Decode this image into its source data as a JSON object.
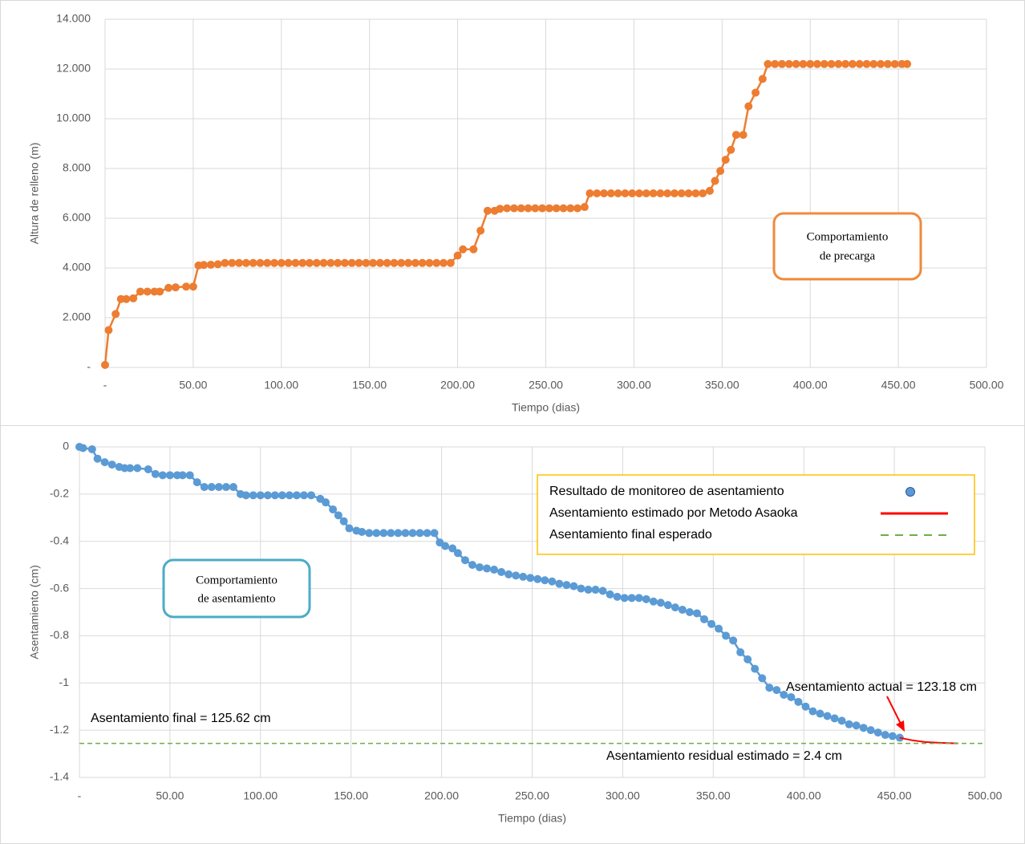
{
  "chart_data": [
    {
      "type": "line",
      "xlabel": "Tiempo (dias)",
      "ylabel": "Altura de relleno (m)",
      "xlim": [
        0,
        500
      ],
      "ylim": [
        0,
        14
      ],
      "xticks": [
        {
          "value": 0,
          "label": "-"
        },
        {
          "value": 50,
          "label": "50.00"
        },
        {
          "value": 100,
          "label": "100.00"
        },
        {
          "value": 150,
          "label": "150.00"
        },
        {
          "value": 200,
          "label": "200.00"
        },
        {
          "value": 250,
          "label": "250.00"
        },
        {
          "value": 300,
          "label": "300.00"
        },
        {
          "value": 350,
          "label": "350.00"
        },
        {
          "value": 400,
          "label": "400.00"
        },
        {
          "value": 450,
          "label": "450.00"
        },
        {
          "value": 500,
          "label": "500.00"
        }
      ],
      "yticks": [
        {
          "value": 0,
          "label": "-"
        },
        {
          "value": 2,
          "label": "2.000"
        },
        {
          "value": 4,
          "label": "4.000"
        },
        {
          "value": 6,
          "label": "6.000"
        },
        {
          "value": 8,
          "label": "8.000"
        },
        {
          "value": 10,
          "label": "10.000"
        },
        {
          "value": 12,
          "label": "12.000"
        },
        {
          "value": 14,
          "label": "14.000"
        }
      ],
      "grid": true,
      "note_box": [
        "Comportamiento",
        "de precarga"
      ],
      "note_color": "#f08a3c",
      "series": [
        {
          "color": "#ed7d31",
          "marker": true,
          "x": [
            0,
            2,
            6,
            9,
            12,
            16,
            20,
            24,
            28,
            31,
            36,
            40,
            46,
            50,
            53,
            56,
            60,
            64,
            68,
            72,
            76,
            80,
            84,
            88,
            92,
            96,
            100,
            104,
            108,
            112,
            116,
            120,
            124,
            128,
            132,
            136,
            140,
            144,
            148,
            152,
            156,
            160,
            164,
            168,
            172,
            176,
            180,
            184,
            188,
            192,
            196,
            200,
            203,
            209,
            213,
            217,
            221,
            224,
            228,
            232,
            236,
            240,
            244,
            248,
            252,
            256,
            260,
            264,
            268,
            272,
            275,
            279,
            283,
            287,
            291,
            295,
            299,
            303,
            307,
            311,
            315,
            319,
            323,
            327,
            331,
            335,
            339,
            343,
            346,
            349,
            352,
            355,
            358,
            362,
            365,
            369,
            373,
            376,
            380,
            384,
            388,
            392,
            396,
            400,
            404,
            408,
            412,
            416,
            420,
            424,
            428,
            432,
            436,
            440,
            444,
            448,
            452,
            455
          ],
          "values": [
            0.1,
            1.5,
            2.15,
            2.75,
            2.75,
            2.78,
            3.05,
            3.05,
            3.05,
            3.05,
            3.2,
            3.22,
            3.25,
            3.25,
            4.1,
            4.12,
            4.13,
            4.15,
            4.2,
            4.2,
            4.2,
            4.2,
            4.2,
            4.2,
            4.2,
            4.2,
            4.2,
            4.2,
            4.2,
            4.2,
            4.2,
            4.2,
            4.2,
            4.2,
            4.2,
            4.2,
            4.2,
            4.2,
            4.2,
            4.2,
            4.2,
            4.2,
            4.2,
            4.2,
            4.2,
            4.2,
            4.2,
            4.2,
            4.2,
            4.2,
            4.2,
            4.5,
            4.75,
            4.75,
            5.5,
            6.3,
            6.3,
            6.38,
            6.4,
            6.4,
            6.4,
            6.4,
            6.4,
            6.4,
            6.4,
            6.4,
            6.4,
            6.4,
            6.4,
            6.45,
            7.0,
            7.0,
            7.0,
            7.0,
            7.0,
            7.0,
            7.0,
            7.0,
            7.0,
            7.0,
            7.0,
            7.0,
            7.0,
            7.0,
            7.0,
            7.0,
            7.0,
            7.1,
            7.5,
            7.9,
            8.35,
            8.75,
            9.35,
            9.35,
            10.5,
            11.05,
            11.6,
            12.2,
            12.2,
            12.2,
            12.2,
            12.2,
            12.2,
            12.2,
            12.2,
            12.2,
            12.2,
            12.2,
            12.2,
            12.2,
            12.2,
            12.2,
            12.2,
            12.2,
            12.2,
            12.2,
            12.2,
            12.2
          ]
        }
      ]
    },
    {
      "type": "line",
      "xlabel": "Tiempo (dias)",
      "ylabel": "Asentamiento (cm)",
      "xlim": [
        0,
        500
      ],
      "ylim": [
        -1.4,
        0
      ],
      "xticks": [
        {
          "value": 0,
          "label": "-"
        },
        {
          "value": 50,
          "label": "50.00"
        },
        {
          "value": 100,
          "label": "100.00"
        },
        {
          "value": 150,
          "label": "150.00"
        },
        {
          "value": 200,
          "label": "200.00"
        },
        {
          "value": 250,
          "label": "250.00"
        },
        {
          "value": 300,
          "label": "300.00"
        },
        {
          "value": 350,
          "label": "350.00"
        },
        {
          "value": 400,
          "label": "400.00"
        },
        {
          "value": 450,
          "label": "450.00"
        },
        {
          "value": 500,
          "label": "500.00"
        }
      ],
      "yticks": [
        0,
        -0.2,
        -0.4,
        -0.6,
        -0.8,
        -1,
        -1.2,
        -1.4
      ],
      "grid": true,
      "legend": "upper right",
      "note_box": [
        "Comportamiento",
        "de asentamiento"
      ],
      "note_color": "#4bacc6",
      "annotations": [
        "Asentamiento final  = 125.62 cm",
        "Asentamiento actual  = 123.18 cm",
        "Asentamiento residual estimado  = 2.4 cm"
      ],
      "series": [
        {
          "name": "Resultado de monitoreo de asentamiento",
          "color": "#5b9bd5",
          "marker": true,
          "x": [
            0,
            2,
            7,
            10,
            14,
            18,
            22,
            25,
            28,
            32,
            38,
            42,
            46,
            50,
            54,
            57,
            61,
            65,
            69,
            73,
            77,
            81,
            85,
            89,
            92,
            96,
            100,
            104,
            108,
            112,
            116,
            120,
            124,
            128,
            133,
            136,
            140,
            143,
            146,
            149,
            153,
            156,
            160,
            164,
            168,
            172,
            176,
            180,
            184,
            188,
            192,
            196,
            199,
            202,
            206,
            209,
            213,
            217,
            221,
            225,
            229,
            233,
            237,
            241,
            245,
            249,
            253,
            257,
            261,
            265,
            269,
            273,
            277,
            281,
            285,
            289,
            293,
            297,
            301,
            305,
            309,
            313,
            317,
            321,
            325,
            329,
            333,
            337,
            341,
            345,
            349,
            353,
            357,
            361,
            365,
            369,
            373,
            377,
            381,
            385,
            389,
            393,
            397,
            401,
            405,
            409,
            413,
            417,
            421,
            425,
            429,
            433,
            437,
            441,
            445,
            449,
            453
          ],
          "values": [
            0,
            -0.005,
            -0.01,
            -0.05,
            -0.065,
            -0.075,
            -0.085,
            -0.09,
            -0.09,
            -0.09,
            -0.095,
            -0.115,
            -0.12,
            -0.12,
            -0.12,
            -0.12,
            -0.12,
            -0.15,
            -0.17,
            -0.17,
            -0.17,
            -0.17,
            -0.17,
            -0.2,
            -0.205,
            -0.205,
            -0.205,
            -0.205,
            -0.205,
            -0.205,
            -0.205,
            -0.205,
            -0.205,
            -0.205,
            -0.22,
            -0.235,
            -0.265,
            -0.29,
            -0.315,
            -0.345,
            -0.355,
            -0.36,
            -0.365,
            -0.365,
            -0.365,
            -0.365,
            -0.365,
            -0.365,
            -0.365,
            -0.365,
            -0.365,
            -0.365,
            -0.405,
            -0.42,
            -0.43,
            -0.45,
            -0.48,
            -0.5,
            -0.51,
            -0.515,
            -0.52,
            -0.53,
            -0.54,
            -0.545,
            -0.55,
            -0.555,
            -0.56,
            -0.565,
            -0.57,
            -0.58,
            -0.585,
            -0.59,
            -0.6,
            -0.605,
            -0.605,
            -0.61,
            -0.625,
            -0.635,
            -0.64,
            -0.64,
            -0.64,
            -0.645,
            -0.655,
            -0.66,
            -0.67,
            -0.68,
            -0.69,
            -0.7,
            -0.705,
            -0.73,
            -0.75,
            -0.77,
            -0.8,
            -0.82,
            -0.87,
            -0.9,
            -0.94,
            -0.98,
            -1.02,
            -1.03,
            -1.05,
            -1.06,
            -1.08,
            -1.1,
            -1.12,
            -1.13,
            -1.14,
            -1.15,
            -1.16,
            -1.175,
            -1.18,
            -1.19,
            -1.2,
            -1.21,
            -1.22,
            -1.225,
            -1.232
          ]
        },
        {
          "name": "Asentamiento estimado por Metodo Asaoka",
          "color": "#ff0000",
          "marker": false,
          "x": [
            453,
            460,
            467,
            474,
            481,
            485
          ],
          "values": [
            -1.232,
            -1.243,
            -1.25,
            -1.253,
            -1.255,
            -1.256
          ]
        },
        {
          "name": "Asentamiento final esperado",
          "color": "#70ad47",
          "marker": false,
          "dashed": true,
          "x": [
            0,
            500
          ],
          "values": [
            -1.256,
            -1.256
          ]
        }
      ]
    }
  ]
}
